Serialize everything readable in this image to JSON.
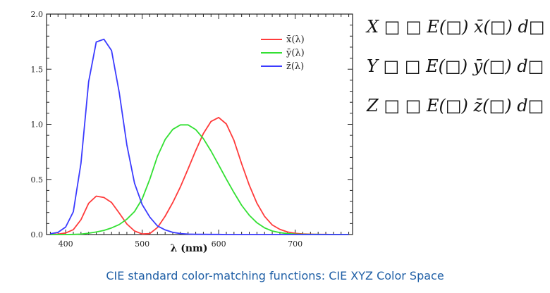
{
  "chart_data": {
    "type": "line",
    "title": "",
    "xlabel": "λ (nm)",
    "ylabel": "",
    "xlim": [
      375,
      775
    ],
    "ylim": [
      0,
      2.0
    ],
    "x_ticks": [
      400,
      500,
      600,
      700
    ],
    "y_ticks": [
      0.0,
      0.5,
      1.0,
      1.5,
      2.0
    ],
    "y_tick_labels": [
      "0.0",
      "0.5",
      "1.0",
      "1.5",
      "2.0"
    ],
    "grid": false,
    "legend_position": "top-right",
    "series": [
      {
        "name": "x̄(λ)",
        "color": "#ff3b3b",
        "points": [
          [
            380,
            0.001
          ],
          [
            390,
            0.004
          ],
          [
            400,
            0.014
          ],
          [
            410,
            0.044
          ],
          [
            420,
            0.134
          ],
          [
            430,
            0.284
          ],
          [
            440,
            0.348
          ],
          [
            450,
            0.336
          ],
          [
            460,
            0.291
          ],
          [
            470,
            0.195
          ],
          [
            480,
            0.096
          ],
          [
            490,
            0.032
          ],
          [
            500,
            0.005
          ],
          [
            510,
            0.009
          ],
          [
            520,
            0.063
          ],
          [
            530,
            0.166
          ],
          [
            540,
            0.29
          ],
          [
            550,
            0.433
          ],
          [
            560,
            0.595
          ],
          [
            570,
            0.762
          ],
          [
            580,
            0.916
          ],
          [
            590,
            1.026
          ],
          [
            600,
            1.062
          ],
          [
            610,
            1.003
          ],
          [
            620,
            0.854
          ],
          [
            630,
            0.642
          ],
          [
            640,
            0.448
          ],
          [
            650,
            0.284
          ],
          [
            660,
            0.165
          ],
          [
            670,
            0.087
          ],
          [
            680,
            0.047
          ],
          [
            690,
            0.023
          ],
          [
            700,
            0.011
          ],
          [
            710,
            0.006
          ],
          [
            720,
            0.003
          ],
          [
            730,
            0.001
          ],
          [
            740,
            0.001
          ],
          [
            750,
            0.0
          ],
          [
            760,
            0.0
          ],
          [
            770,
            0.0
          ]
        ]
      },
      {
        "name": "ȳ(λ)",
        "color": "#33e033",
        "points": [
          [
            380,
            0.0
          ],
          [
            390,
            0.0
          ],
          [
            400,
            0.0
          ],
          [
            410,
            0.001
          ],
          [
            420,
            0.004
          ],
          [
            430,
            0.012
          ],
          [
            440,
            0.023
          ],
          [
            450,
            0.038
          ],
          [
            460,
            0.06
          ],
          [
            470,
            0.091
          ],
          [
            480,
            0.139
          ],
          [
            490,
            0.208
          ],
          [
            500,
            0.323
          ],
          [
            510,
            0.503
          ],
          [
            520,
            0.71
          ],
          [
            530,
            0.862
          ],
          [
            540,
            0.954
          ],
          [
            550,
            0.995
          ],
          [
            560,
            0.995
          ],
          [
            570,
            0.952
          ],
          [
            580,
            0.87
          ],
          [
            590,
            0.757
          ],
          [
            600,
            0.631
          ],
          [
            610,
            0.503
          ],
          [
            620,
            0.381
          ],
          [
            630,
            0.265
          ],
          [
            640,
            0.175
          ],
          [
            650,
            0.107
          ],
          [
            660,
            0.061
          ],
          [
            670,
            0.032
          ],
          [
            680,
            0.017
          ],
          [
            690,
            0.008
          ],
          [
            700,
            0.004
          ],
          [
            710,
            0.002
          ],
          [
            720,
            0.001
          ],
          [
            730,
            0.001
          ],
          [
            740,
            0.0
          ],
          [
            750,
            0.0
          ],
          [
            760,
            0.0
          ],
          [
            770,
            0.0
          ]
        ]
      },
      {
        "name": "z̄(λ)",
        "color": "#3b3bff",
        "points": [
          [
            380,
            0.007
          ],
          [
            390,
            0.02
          ],
          [
            400,
            0.068
          ],
          [
            410,
            0.207
          ],
          [
            420,
            0.646
          ],
          [
            430,
            1.386
          ],
          [
            440,
            1.747
          ],
          [
            450,
            1.772
          ],
          [
            460,
            1.669
          ],
          [
            470,
            1.288
          ],
          [
            480,
            0.813
          ],
          [
            490,
            0.465
          ],
          [
            500,
            0.272
          ],
          [
            510,
            0.158
          ],
          [
            520,
            0.078
          ],
          [
            530,
            0.042
          ],
          [
            540,
            0.02
          ],
          [
            550,
            0.009
          ],
          [
            560,
            0.004
          ],
          [
            570,
            0.002
          ],
          [
            580,
            0.002
          ],
          [
            590,
            0.001
          ],
          [
            600,
            0.001
          ],
          [
            610,
            0.0
          ],
          [
            620,
            0.0
          ],
          [
            630,
            0.0
          ],
          [
            640,
            0.0
          ],
          [
            650,
            0.0
          ],
          [
            660,
            0.0
          ],
          [
            670,
            0.0
          ],
          [
            680,
            0.0
          ],
          [
            690,
            0.0
          ],
          [
            700,
            0.0
          ],
          [
            710,
            0.0
          ],
          [
            720,
            0.0
          ],
          [
            730,
            0.0
          ],
          [
            740,
            0.0
          ],
          [
            750,
            0.0
          ],
          [
            760,
            0.0
          ],
          [
            770,
            0.0
          ]
        ]
      }
    ]
  },
  "equations": [
    {
      "lhs": "X",
      "rel": "□",
      "op": "□",
      "body": "E(□) x̄(□) d□"
    },
    {
      "lhs": "Y",
      "rel": "□",
      "op": "□",
      "body": "E(□) ȳ(□) d□"
    },
    {
      "lhs": "Z",
      "rel": "□",
      "op": "□",
      "body": "E(□) z̄(□) d□"
    }
  ],
  "caption": "CIE standard color-matching functions: CIE XYZ Color Space"
}
